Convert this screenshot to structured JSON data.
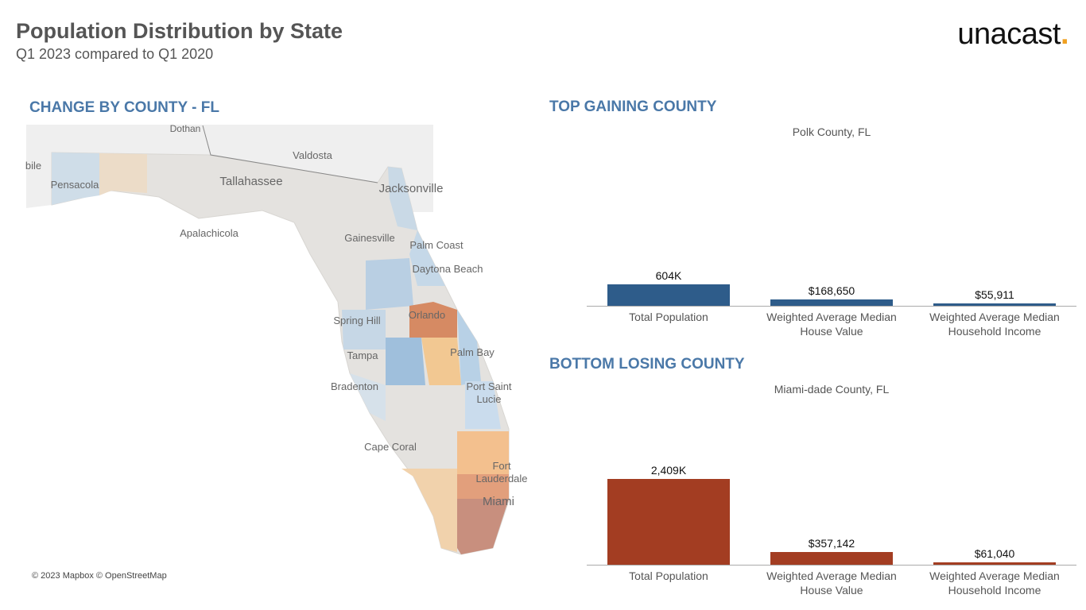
{
  "header": {
    "title": "Population Distribution by State",
    "subtitle": "Q1 2023 compared to Q1 2020",
    "logo": "unacast",
    "logo_dot": "."
  },
  "map": {
    "title": "CHANGE BY COUNTY - FL",
    "places": [
      "Dothan",
      "Valdosta",
      "Tallahassee",
      "Jacksonville",
      "Pensacola",
      "bile",
      "Apalachicola",
      "Gainesville",
      "Palm Coast",
      "Daytona Beach",
      "Orlando",
      "Spring Hill",
      "Tampa",
      "Palm Bay",
      "Bradenton",
      "Port Saint Lucie",
      "Cape Coral",
      "Fort Lauderdale",
      "Miami"
    ],
    "attribution": "© 2023 Mapbox © OpenStreetMap"
  },
  "chart_data": [
    {
      "type": "bar",
      "title": "TOP GAINING COUNTY",
      "subtitle": "Polk County, FL",
      "categories": [
        "Total Population",
        "Weighted Average Median House Value",
        "Weighted Average Median Household Income"
      ],
      "values": [
        604000,
        168650,
        55911
      ],
      "value_labels": [
        "604K",
        "$168,650",
        "$55,911"
      ],
      "color": "#2e5c8a",
      "ylim": [
        0,
        4500000
      ]
    },
    {
      "type": "bar",
      "title": "BOTTOM LOSING COUNTY",
      "subtitle": "Miami-dade County, FL",
      "categories": [
        "Total Population",
        "Weighted Average Median House Value",
        "Weighted Average Median Household Income"
      ],
      "values": [
        2409000,
        357142,
        61040
      ],
      "value_labels": [
        "2,409K",
        "$357,142",
        "$61,040"
      ],
      "color": "#a33d22",
      "ylim": [
        0,
        4500000
      ]
    }
  ]
}
